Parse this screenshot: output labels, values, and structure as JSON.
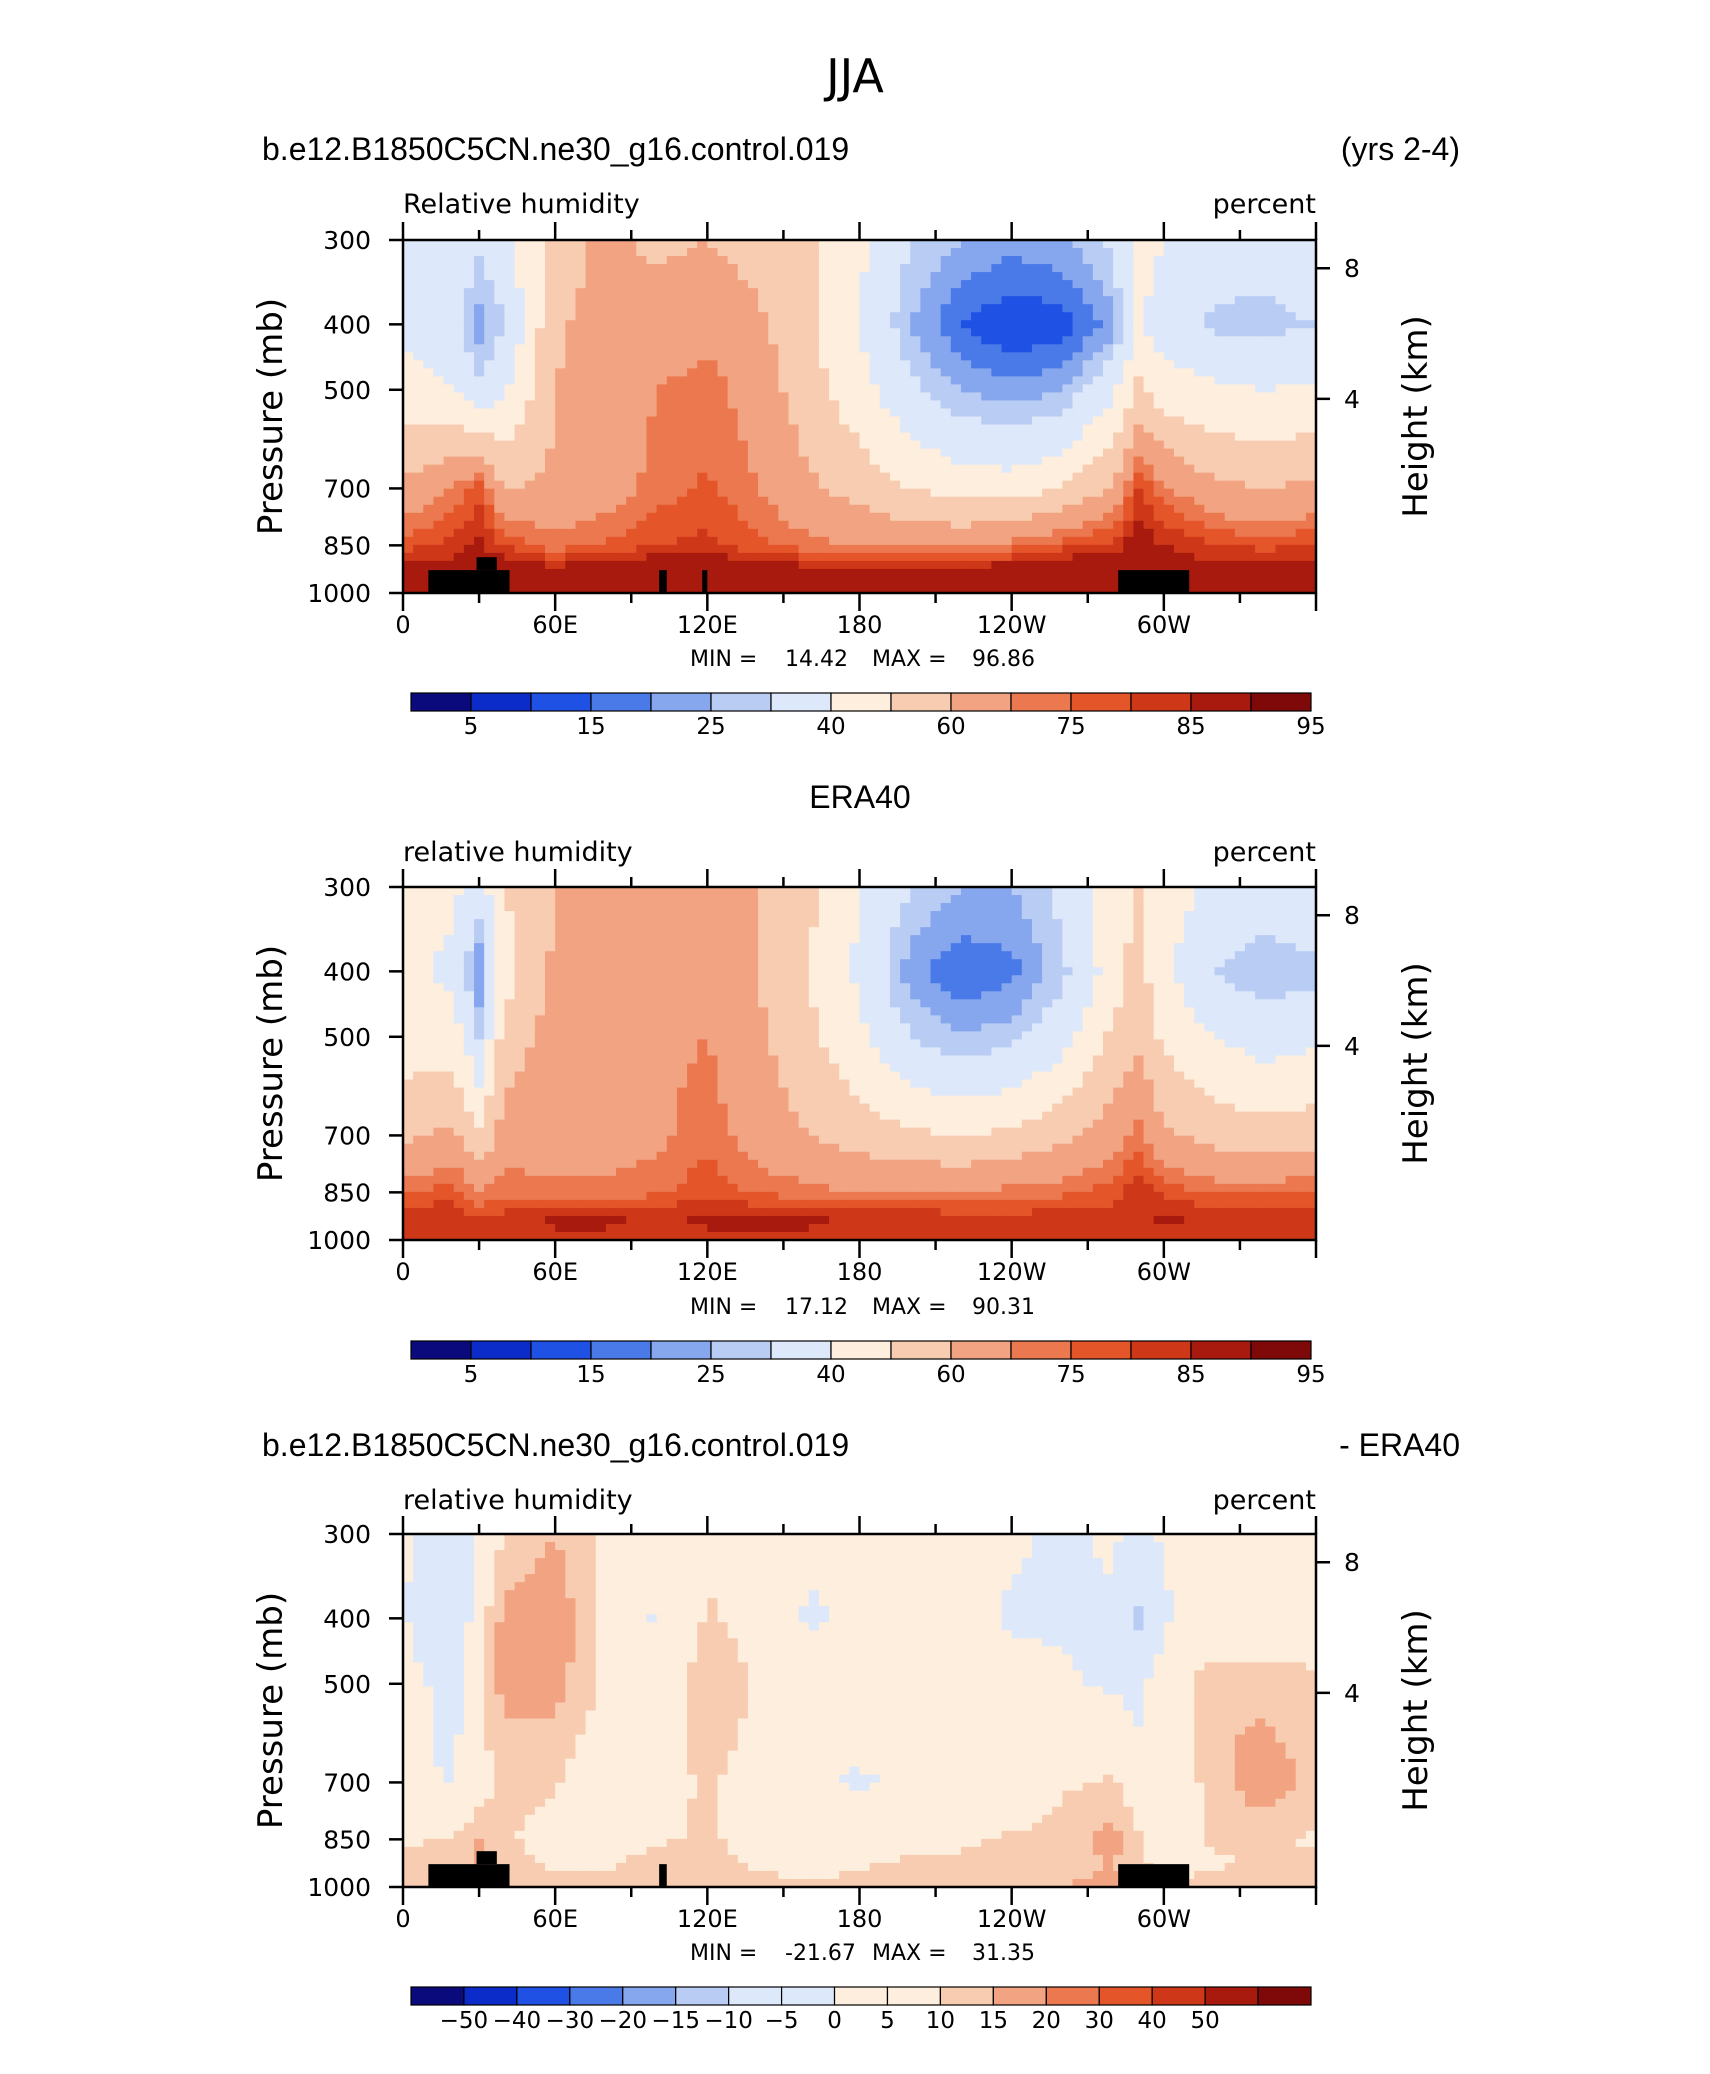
{
  "page": {
    "title": "JJA"
  },
  "chart_data": [
    {
      "type": "heatmap",
      "header_left": "b.e12.B1850C5CN.ne30_g16.control.019",
      "header_right": "(yrs 2-4)",
      "variable": "Relative humidity",
      "units": "percent",
      "ylabel": "Pressure (mb)",
      "ylabel_right": "Height (km)",
      "y_ticks": [
        "300",
        "400",
        "500",
        "700",
        "850",
        "1000"
      ],
      "y_right_ticks": [
        "8",
        "4"
      ],
      "x_ticks": [
        "0",
        "60E",
        "120E",
        "180",
        "120W",
        "60W"
      ],
      "min_label": "MIN =",
      "min_value": "14.42",
      "max_label": "MAX =",
      "max_value": "96.86",
      "colorbar_labels": [
        "5",
        "15",
        "25",
        "40",
        "60",
        "75",
        "85",
        "95"
      ],
      "field": {
        "note": "approximate values read from shading",
        "lon": [
          0,
          20,
          30,
          40,
          60,
          80,
          100,
          120,
          140,
          160,
          180,
          200,
          220,
          240,
          260,
          280,
          290,
          300,
          320,
          340,
          360
        ],
        "lev": [
          300,
          400,
          500,
          700,
          850,
          925,
          1000
        ],
        "values": [
          [
            40,
            38,
            32,
            36,
            55,
            62,
            58,
            60,
            56,
            52,
            42,
            30,
            25,
            22,
            24,
            32,
            45,
            40,
            35,
            33,
            36
          ],
          [
            38,
            33,
            22,
            30,
            58,
            65,
            64,
            68,
            62,
            52,
            40,
            25,
            15,
            10,
            12,
            22,
            40,
            35,
            28,
            28,
            30
          ],
          [
            45,
            40,
            32,
            38,
            60,
            66,
            70,
            73,
            66,
            54,
            44,
            32,
            25,
            22,
            25,
            38,
            52,
            45,
            42,
            40,
            42
          ],
          [
            62,
            70,
            78,
            60,
            62,
            66,
            72,
            76,
            70,
            62,
            56,
            50,
            46,
            45,
            50,
            62,
            80,
            72,
            62,
            60,
            62
          ],
          [
            78,
            82,
            86,
            80,
            72,
            76,
            80,
            82,
            76,
            72,
            70,
            68,
            68,
            72,
            78,
            82,
            90,
            85,
            80,
            78,
            80
          ],
          [
            88,
            88,
            90,
            90,
            88,
            90,
            92,
            92,
            90,
            88,
            88,
            88,
            88,
            90,
            92,
            92,
            94,
            90,
            88,
            90,
            90
          ],
          [
            88,
            88,
            88,
            90,
            90,
            90,
            92,
            92,
            92,
            90,
            90,
            90,
            90,
            90,
            92,
            94,
            94,
            90,
            88,
            90,
            90
          ]
        ]
      }
    },
    {
      "type": "heatmap",
      "header_center": "ERA40",
      "variable": "relative humidity",
      "units": "percent",
      "ylabel": "Pressure (mb)",
      "ylabel_right": "Height (km)",
      "y_ticks": [
        "300",
        "400",
        "500",
        "700",
        "850",
        "1000"
      ],
      "y_right_ticks": [
        "8",
        "4"
      ],
      "x_ticks": [
        "0",
        "60E",
        "120E",
        "180",
        "120W",
        "60W"
      ],
      "min_label": "MIN =",
      "min_value": "17.12",
      "max_label": "MAX =",
      "max_value": "90.31",
      "colorbar_labels": [
        "5",
        "15",
        "25",
        "40",
        "60",
        "75",
        "85",
        "95"
      ],
      "field": {
        "note": "approximate values read from shading",
        "lon": [
          0,
          20,
          30,
          40,
          60,
          80,
          100,
          120,
          140,
          160,
          180,
          200,
          220,
          240,
          260,
          280,
          290,
          300,
          320,
          340,
          360
        ],
        "lev": [
          300,
          400,
          500,
          700,
          850,
          925,
          1000
        ],
        "values": [
          [
            42,
            42,
            35,
            50,
            60,
            62,
            64,
            62,
            60,
            52,
            40,
            30,
            25,
            25,
            32,
            45,
            52,
            45,
            38,
            35,
            38
          ],
          [
            42,
            38,
            20,
            45,
            62,
            64,
            66,
            66,
            60,
            50,
            38,
            22,
            16,
            18,
            28,
            45,
            54,
            42,
            30,
            25,
            28
          ],
          [
            45,
            45,
            30,
            55,
            64,
            66,
            68,
            70,
            62,
            52,
            42,
            30,
            25,
            28,
            36,
            52,
            58,
            48,
            40,
            36,
            38
          ],
          [
            58,
            62,
            52,
            64,
            66,
            66,
            68,
            74,
            66,
            60,
            56,
            52,
            50,
            52,
            58,
            66,
            72,
            62,
            56,
            54,
            56
          ],
          [
            74,
            78,
            70,
            74,
            72,
            72,
            74,
            78,
            74,
            72,
            70,
            70,
            70,
            72,
            74,
            78,
            84,
            78,
            74,
            74,
            76
          ],
          [
            84,
            84,
            80,
            82,
            86,
            86,
            84,
            86,
            86,
            86,
            84,
            84,
            82,
            82,
            82,
            82,
            84,
            86,
            84,
            82,
            84
          ],
          [
            82,
            82,
            80,
            82,
            84,
            84,
            84,
            84,
            84,
            84,
            82,
            82,
            82,
            82,
            82,
            82,
            84,
            84,
            82,
            82,
            82
          ]
        ]
      }
    },
    {
      "type": "heatmap",
      "header_left": "b.e12.B1850C5CN.ne30_g16.control.019",
      "header_right": "- ERA40",
      "variable": "relative humidity",
      "units": "percent",
      "ylabel": "Pressure (mb)",
      "ylabel_right": "Height (km)",
      "y_ticks": [
        "300",
        "400",
        "500",
        "700",
        "850",
        "1000"
      ],
      "y_right_ticks": [
        "8",
        "4"
      ],
      "x_ticks": [
        "0",
        "60E",
        "120E",
        "180",
        "120W",
        "60W"
      ],
      "min_label": "MIN =",
      "min_value": "-21.67",
      "max_label": "MAX =",
      "max_value": "31.35",
      "colorbar_labels": [
        "−50",
        "−40",
        "−30",
        "−20",
        "−15",
        "−10",
        "−5",
        "0",
        "5",
        "10",
        "15",
        "20",
        "30",
        "40",
        "50"
      ],
      "field": {
        "note": "approximate values read from shading",
        "lon": [
          0,
          20,
          30,
          40,
          60,
          80,
          100,
          120,
          140,
          160,
          180,
          200,
          220,
          240,
          260,
          280,
          290,
          300,
          320,
          340,
          360
        ],
        "lev": [
          300,
          400,
          500,
          700,
          850,
          925,
          1000
        ],
        "values": [
          [
            -4,
            -12,
            -4,
            6,
            10,
            3,
            -2,
            4,
            -2,
            -4,
            -2,
            -3,
            -2,
            -4,
            -6,
            -4,
            -8,
            -4,
            -2,
            -2,
            -2
          ],
          [
            -4,
            -16,
            2,
            12,
            14,
            3,
            -6,
            6,
            2,
            -6,
            -4,
            -4,
            -2,
            -6,
            -6,
            -6,
            -16,
            -6,
            -2,
            0,
            2
          ],
          [
            -2,
            -8,
            4,
            12,
            12,
            4,
            -2,
            10,
            4,
            -2,
            0,
            2,
            0,
            -2,
            -4,
            -6,
            -8,
            0,
            10,
            8,
            6
          ],
          [
            -2,
            -6,
            2,
            6,
            6,
            -2,
            2,
            6,
            2,
            -4,
            -6,
            -4,
            -2,
            -2,
            4,
            6,
            0,
            -2,
            8,
            14,
            8
          ],
          [
            4,
            6,
            10,
            6,
            2,
            2,
            4,
            6,
            2,
            0,
            2,
            4,
            4,
            6,
            8,
            12,
            6,
            -2,
            6,
            6,
            4
          ],
          [
            6,
            6,
            10,
            8,
            4,
            4,
            8,
            8,
            4,
            2,
            4,
            6,
            6,
            8,
            8,
            10,
            8,
            2,
            4,
            6,
            6
          ],
          [
            8,
            8,
            10,
            10,
            8,
            8,
            10,
            10,
            8,
            6,
            8,
            8,
            8,
            8,
            10,
            12,
            10,
            6,
            8,
            10,
            8
          ]
        ]
      }
    }
  ],
  "palettes": {
    "rh": [
      "#0a0a7c",
      "#0b2cc8",
      "#1f52e4",
      "#4a7ae8",
      "#86a6ee",
      "#b9cdf4",
      "#dde8fa",
      "#fdeedd",
      "#f8ccb0",
      "#f2a482",
      "#ec7850",
      "#e4562a",
      "#ce3818",
      "#a81a0e",
      "#7f0808"
    ],
    "diff": [
      "#0a0a7c",
      "#0b2cc8",
      "#1f52e4",
      "#4a7ae8",
      "#86a6ee",
      "#b9cdf4",
      "#dde8fa",
      "#dde8fa",
      "#fdeedd",
      "#fdeedd",
      "#f8ccb0",
      "#f2a482",
      "#ec7850",
      "#e4562a",
      "#ce3818",
      "#a81a0e",
      "#7f0808"
    ],
    "rh_levels": [
      5,
      15,
      25,
      40,
      60,
      75,
      85,
      95
    ],
    "rh_bounds": [
      0,
      5,
      10,
      15,
      20,
      25,
      30,
      40,
      50,
      60,
      70,
      75,
      80,
      85,
      90,
      95,
      100
    ],
    "diff_bounds": [
      -50,
      -40,
      -30,
      -20,
      -15,
      -10,
      -5,
      0,
      5,
      10,
      15,
      20,
      30,
      40,
      50
    ],
    "land_color": "#000000"
  }
}
